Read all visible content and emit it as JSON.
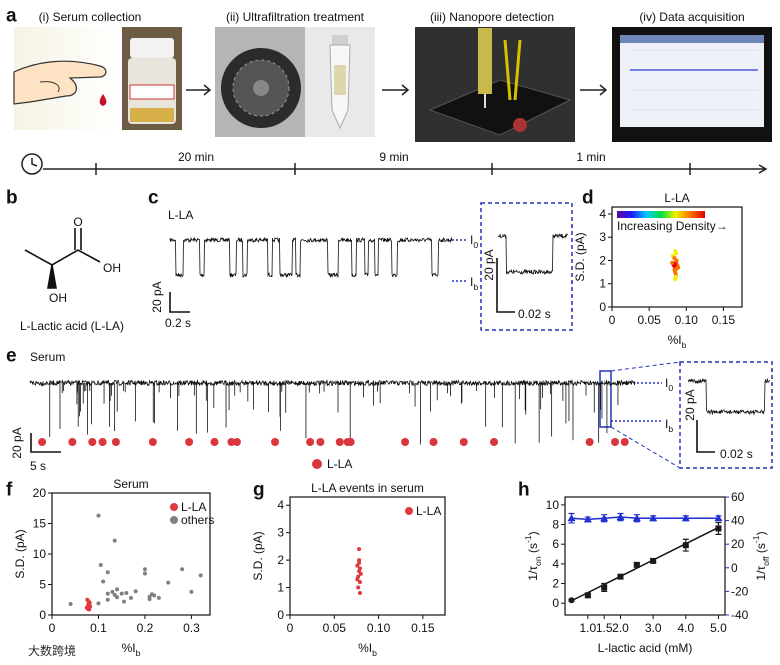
{
  "figure": {
    "panel_labels": [
      "a",
      "b",
      "c",
      "d",
      "e",
      "f",
      "g",
      "h"
    ],
    "workflow": {
      "steps": [
        "(i) Serum collection",
        "(ii) Ultrafiltration treatment",
        "(iii) Nanopore detection",
        "(iv) Data acquisition"
      ],
      "times": [
        "20 min",
        "9 min",
        "1 min"
      ]
    },
    "molecule": {
      "atoms": [
        "O",
        "OH",
        "OH"
      ],
      "name": "L-Lactic acid (L-LA)"
    },
    "trace_c": {
      "title": "L-LA",
      "levels": [
        [
          {
            "text": "I"
          },
          {
            "text": "0",
            "shift": "sub"
          }
        ],
        [
          {
            "text": "I"
          },
          {
            "text": "b",
            "shift": "sub"
          }
        ]
      ],
      "scale_y": "20 pA",
      "scale_x": "0.2 s",
      "inset_scale_y": "20 pA",
      "inset_scale_x": "0.02 s"
    },
    "trace_e": {
      "title": "Serum",
      "events": {
        "name": "L-LA",
        "color": "#d9363e",
        "xlim": [
          0,
          100
        ],
        "times": [
          2,
          7,
          10.3,
          12,
          14.2,
          20.3,
          26.3,
          30.5,
          33.3,
          34.2,
          40.5,
          46.3,
          48,
          51.2,
          52.5,
          53,
          62,
          66.7,
          71.7,
          76.7,
          92.5,
          96.7,
          98.3
        ]
      },
      "levels": [
        [
          {
            "text": "I"
          },
          {
            "text": "0",
            "shift": "sub"
          }
        ],
        [
          {
            "text": "I"
          },
          {
            "text": "b",
            "shift": "sub"
          }
        ]
      ],
      "scale_y": "20 pA",
      "scale_x": "5 s",
      "inset_scale_y": "20 pA",
      "inset_scale_x": "0.02 s"
    },
    "watermark": "大数跨境"
  },
  "chart_data": [
    {
      "type": "scatter",
      "title": "L-LA",
      "xlabel": [
        {
          "text": "%I"
        },
        {
          "text": "b",
          "shift": "sub"
        }
      ],
      "ylabel": "S.D. (pA)",
      "xlim": [
        0,
        0.175
      ],
      "xticks": [
        0,
        0.05,
        {
          "value": 0.1,
          "label": "0.10"
        },
        0.15
      ],
      "ylim": [
        0,
        4.3
      ],
      "yticks": [
        0,
        1,
        2,
        3,
        4
      ],
      "colormap": [
        "#5b0a9e",
        "#1b1bff",
        "#00c8ff",
        "#00e040",
        "#f0f000",
        "#ff7000",
        "#e00000"
      ],
      "colorbar_label": "Increasing Density→",
      "series": [
        {
          "x": [
            0.083,
            0.085,
            0.086,
            0.084,
            0.087,
            0.085,
            0.082,
            0.088,
            0.086,
            0.084,
            0.085,
            0.083,
            0.087,
            0.085,
            0.086,
            0.084,
            0.089,
            0.081,
            0.085,
            0.086
          ],
          "values": [
            1.8,
            1.7,
            1.9,
            1.6,
            2.0,
            1.5,
            2.2,
            1.8,
            1.4,
            2.1,
            1.75,
            1.9,
            1.65,
            2.4,
            1.3,
            1.85,
            1.7,
            1.9,
            1.2,
            2.3
          ]
        }
      ]
    },
    {
      "type": "scatter",
      "title": "Serum",
      "xlabel": [
        {
          "text": "%I"
        },
        {
          "text": "b",
          "shift": "sub"
        }
      ],
      "ylabel": "S.D. (pA)",
      "xlim": [
        0,
        0.34
      ],
      "xticks": [
        0,
        0.1,
        0.2,
        0.3
      ],
      "ylim": [
        0,
        20
      ],
      "yticks": [
        0,
        5,
        10,
        15,
        20
      ],
      "legend": "upper right",
      "series": [
        {
          "name": "L-LA",
          "color": "#e0393e",
          "x": [
            0.075,
            0.078,
            0.08,
            0.077,
            0.079,
            0.082,
            0.076,
            0.08,
            0.078,
            0.081
          ],
          "values": [
            1.2,
            1.5,
            1.8,
            1.0,
            2.2,
            1.4,
            2.5,
            0.9,
            1.7,
            2.0
          ]
        },
        {
          "name": "others",
          "color": "#808080",
          "x": [
            0.04,
            0.1,
            0.105,
            0.11,
            0.12,
            0.13,
            0.135,
            0.14,
            0.15,
            0.16,
            0.17,
            0.18,
            0.2,
            0.21,
            0.22,
            0.23,
            0.25,
            0.28,
            0.3,
            0.32,
            0.1,
            0.12,
            0.135,
            0.14,
            0.155,
            0.21,
            0.215,
            0.2,
            0.12
          ],
          "values": [
            1.8,
            16.3,
            8.2,
            5.5,
            3.5,
            3.8,
            12.2,
            4.2,
            3.5,
            3.6,
            2.8,
            3.9,
            7.5,
            3.0,
            3.2,
            2.8,
            5.3,
            7.5,
            3.8,
            6.5,
            1.9,
            2.5,
            3.3,
            2.9,
            2.2,
            2.6,
            3.4,
            6.8,
            7.0
          ]
        }
      ]
    },
    {
      "type": "scatter",
      "title": "L-LA events in serum",
      "xlabel": [
        {
          "text": "%I"
        },
        {
          "text": "b",
          "shift": "sub"
        }
      ],
      "ylabel": "S.D. (pA)",
      "xlim": [
        0,
        0.175
      ],
      "xticks": [
        0,
        0.05,
        {
          "value": 0.1,
          "label": "0.10"
        },
        0.15
      ],
      "ylim": [
        0,
        4.3
      ],
      "yticks": [
        0,
        1,
        2,
        3,
        4
      ],
      "legend": "upper right",
      "series": [
        {
          "name": "L-LA",
          "color": "#e0393e",
          "x": [
            0.077,
            0.078,
            0.079,
            0.076,
            0.078,
            0.08,
            0.077,
            0.079,
            0.078,
            0.076,
            0.079,
            0.078
          ],
          "values": [
            1.4,
            1.6,
            1.2,
            1.8,
            2.0,
            1.5,
            1.0,
            1.7,
            2.4,
            1.3,
            0.8,
            1.9
          ]
        }
      ]
    },
    {
      "type": "errorbar",
      "xlabel": "L-lactic acid (mM)",
      "ylabel": [
        {
          "text": "1/τ"
        },
        {
          "text": "on",
          "shift": "sub"
        },
        {
          "text": " (s"
        },
        {
          "text": "-1",
          "shift": "super"
        },
        {
          "text": ")"
        }
      ],
      "y2label": [
        {
          "text": "1/τ"
        },
        {
          "text": "off",
          "shift": "sub"
        },
        {
          "text": " (s"
        },
        {
          "text": "-1",
          "shift": "super"
        },
        {
          "text": ")"
        }
      ],
      "xlim": [
        0.3,
        5.2
      ],
      "xticks": [
        {
          "value": 1,
          "label": "1.0"
        },
        1.5,
        {
          "value": 2,
          "label": "2.0"
        },
        {
          "value": 3,
          "label": "3.0"
        },
        {
          "value": 4,
          "label": "4.0"
        },
        {
          "value": 5,
          "label": "5.0"
        }
      ],
      "ylim": [
        -1.2,
        10.8
      ],
      "yticks": [
        0,
        2,
        4,
        6,
        8,
        10
      ],
      "y2lim": [
        -40,
        60
      ],
      "y2ticks": [
        -40,
        -20,
        0,
        20,
        40,
        60
      ],
      "y2color": "#1f2fd0",
      "x": [
        0.5,
        1.0,
        1.5,
        2.0,
        2.5,
        3.0,
        4.0,
        5.0
      ],
      "series": [
        {
          "color": "#1a1a1a",
          "values": [
            0.3,
            0.8,
            1.6,
            2.7,
            3.9,
            4.3,
            5.9,
            7.6
          ],
          "errors": [
            0.1,
            0.15,
            0.4,
            0.2,
            0.2,
            0.2,
            0.6,
            0.6
          ]
        },
        {
          "color": "#1f2fd0",
          "axis": "y2",
          "values": [
            42,
            41,
            42,
            43,
            42,
            42,
            42,
            42
          ],
          "errors": [
            4,
            2,
            3,
            3,
            3,
            2,
            2,
            2
          ]
        }
      ],
      "fit": {
        "x": [
          0.5,
          5.0
        ],
        "values": [
          0.25,
          7.7
        ]
      }
    }
  ]
}
